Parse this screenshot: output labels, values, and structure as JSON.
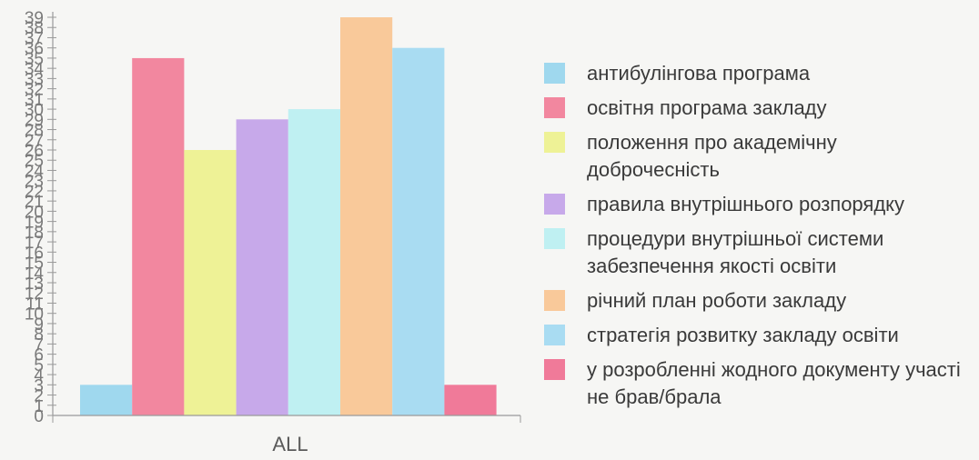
{
  "chart_data": {
    "type": "bar",
    "categories": [
      "ALL"
    ],
    "series": [
      {
        "name": "антибулінгова програма",
        "values": [
          3
        ],
        "color": "#9fd8ee"
      },
      {
        "name": "освітня програма закладу",
        "values": [
          35
        ],
        "color": "#f2879f"
      },
      {
        "name": "положення про академічну доброчесність",
        "values": [
          26
        ],
        "color": "#eef296"
      },
      {
        "name": "правила внутрішнього розпорядку",
        "values": [
          29
        ],
        "color": "#c7a9ea"
      },
      {
        "name": "процедури внутрішньої системи забезпечення якості освіти",
        "values": [
          30
        ],
        "color": "#bff0f2"
      },
      {
        "name": "річний план роботи закладу",
        "values": [
          39
        ],
        "color": "#f9c99a"
      },
      {
        "name": "стратегія розвитку закладу освіти",
        "values": [
          36
        ],
        "color": "#a9dcf2"
      },
      {
        "name": "у розробленні жодного документу участі не брав/брала",
        "values": [
          3
        ],
        "color": "#f07a99"
      }
    ],
    "yticks": [
      "0",
      "1",
      "2",
      "3",
      "4",
      "5",
      "6",
      "7",
      "8",
      "9",
      "10",
      "11",
      "12",
      "13",
      "14",
      "15",
      "16",
      "17",
      "18",
      "19",
      "20",
      "21",
      "22",
      "23",
      "24",
      "25",
      "26",
      "27",
      "28",
      "29",
      "30",
      "31",
      "32",
      "33",
      "34",
      "35",
      "36",
      "37",
      "38",
      "39"
    ],
    "ylim": [
      0,
      39
    ],
    "title": "",
    "xlabel": "",
    "ylabel": "",
    "legend": "right",
    "grid": false
  }
}
